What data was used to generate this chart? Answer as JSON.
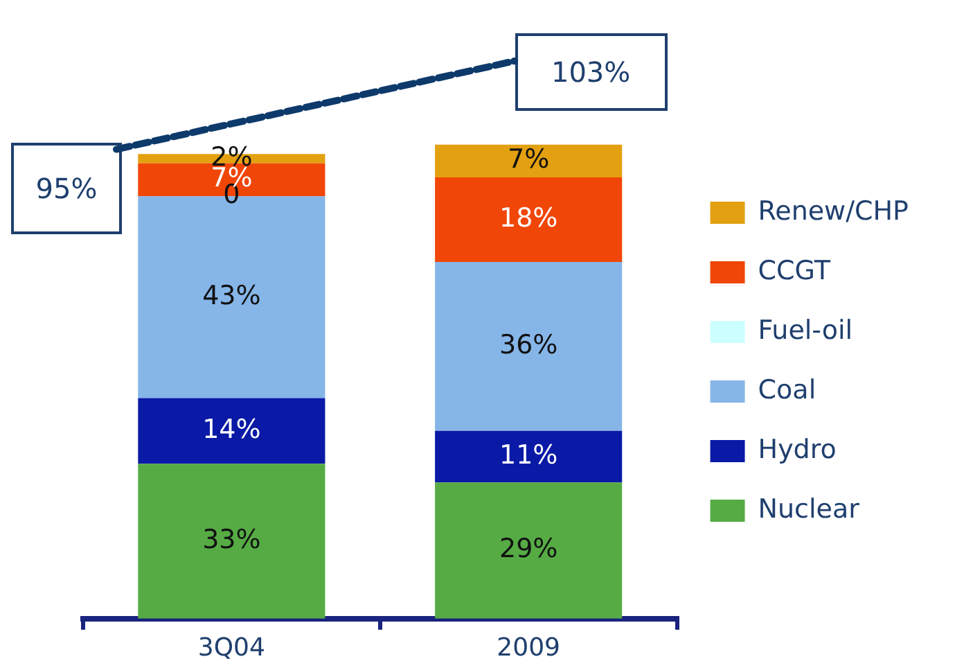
{
  "chart_data": {
    "type": "bar",
    "stacked": true,
    "categories": [
      "3Q04",
      "2009"
    ],
    "series": [
      {
        "name": "Nuclear",
        "color": "#56ab45",
        "values": [
          33,
          29
        ],
        "value_labels": [
          "33%",
          "29%"
        ]
      },
      {
        "name": "Hydro",
        "color": "#0a1aa6",
        "values": [
          14,
          11
        ],
        "value_labels": [
          "14%",
          "11%"
        ]
      },
      {
        "name": "Coal",
        "color": "#86b5e8",
        "values": [
          43,
          36
        ],
        "value_labels": [
          "43%",
          "36%"
        ]
      },
      {
        "name": "Fuel-oil",
        "color": "#ccffff",
        "values": [
          0,
          0
        ],
        "value_labels": [
          "0",
          null
        ]
      },
      {
        "name": "CCGT",
        "color": "#f04608",
        "values": [
          7,
          18
        ],
        "value_labels": [
          "7%",
          "18%"
        ]
      },
      {
        "name": "Renew/CHP",
        "color": "#e3a010",
        "values": [
          2,
          7
        ],
        "value_labels": [
          "2%",
          "7%"
        ]
      }
    ],
    "legend": "right",
    "grid": false,
    "annotations": [
      "95%",
      "103%"
    ]
  }
}
